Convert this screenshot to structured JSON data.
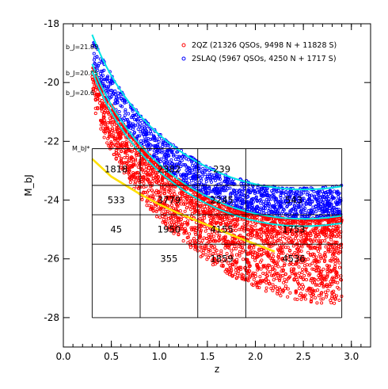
{
  "chart_data": {
    "type": "scatter",
    "xlabel": "z",
    "ylabel": "M_bJ",
    "xlim": [
      0.0,
      3.2
    ],
    "ylim": [
      -29.0,
      -18.0
    ],
    "x_ticks": [
      "0.0",
      "0.5",
      "1.0",
      "1.5",
      "2.0",
      "2.5",
      "3.0"
    ],
    "y_ticks": [
      "-18",
      "-20",
      "-22",
      "-24",
      "-26",
      "-28"
    ],
    "y_tick_values": [
      -18,
      -20,
      -22,
      -24,
      -26,
      -28
    ],
    "x_tick_values": [
      0.0,
      0.5,
      1.0,
      1.5,
      2.0,
      2.5,
      3.0
    ],
    "inverted_y": true,
    "legend_position": "top-right",
    "series": [
      {
        "name": "2QZ (21326 QSOs, 9498 N + 11828 S)",
        "marker": "circle",
        "color": "#ff0000",
        "mag_limit_bJ": 20.85,
        "z_range": [
          0.3,
          2.9
        ],
        "bright_margin": 1.3
      },
      {
        "name": "2SLAQ (5967 QSOs, 4250 N + 1717 S)",
        "marker": "circle",
        "color": "#0000ff",
        "mag_limit_bJ": 21.85,
        "mag_bright_bJ": 20.85,
        "z_range": [
          0.3,
          2.9
        ]
      }
    ],
    "flux_limit_curves": [
      {
        "label": "b_J=21.85",
        "color": "#00e5e5",
        "m": 21.85
      },
      {
        "label": "b_J=20.85",
        "color": "#00e5e5",
        "m": 20.85
      },
      {
        "label": "b_J=20.6",
        "color": "#00e5e5",
        "m": 20.6
      }
    ],
    "mstar_curve": {
      "color": "#ffe000",
      "points": [
        [
          0.3,
          -22.6
        ],
        [
          0.5,
          -23.2
        ],
        [
          0.8,
          -23.8
        ],
        [
          1.0,
          -24.15
        ],
        [
          1.2,
          -24.45
        ],
        [
          1.5,
          -24.85
        ],
        [
          1.8,
          -25.25
        ],
        [
          2.0,
          -25.5
        ],
        [
          2.2,
          -25.75
        ]
      ]
    },
    "grid": {
      "z_edges": [
        0.3,
        0.8,
        1.4,
        1.9,
        2.9
      ],
      "m_edges": [
        -22.25,
        -23.5,
        -24.5,
        -25.5,
        -28.0
      ]
    },
    "grid_label": "M_bJ*",
    "cells": [
      {
        "z": 0.55,
        "m": -22.95,
        "count": "1818"
      },
      {
        "z": 1.1,
        "m": -22.95,
        "count": "2382"
      },
      {
        "z": 1.65,
        "m": -22.95,
        "count": "239"
      },
      {
        "z": 0.55,
        "m": -24.0,
        "count": "533"
      },
      {
        "z": 1.1,
        "m": -24.0,
        "count": "3779"
      },
      {
        "z": 1.65,
        "m": -24.0,
        "count": "2245"
      },
      {
        "z": 2.4,
        "m": -24.0,
        "count": "543"
      },
      {
        "z": 0.55,
        "m": -25.0,
        "count": "45"
      },
      {
        "z": 1.1,
        "m": -25.0,
        "count": "1950"
      },
      {
        "z": 1.65,
        "m": -25.0,
        "count": "4155"
      },
      {
        "z": 2.4,
        "m": -25.0,
        "count": "1753"
      },
      {
        "z": 1.1,
        "m": -26.0,
        "count": "355"
      },
      {
        "z": 1.65,
        "m": -26.0,
        "count": "1859"
      },
      {
        "z": 2.4,
        "m": -26.0,
        "count": "4536"
      }
    ]
  }
}
